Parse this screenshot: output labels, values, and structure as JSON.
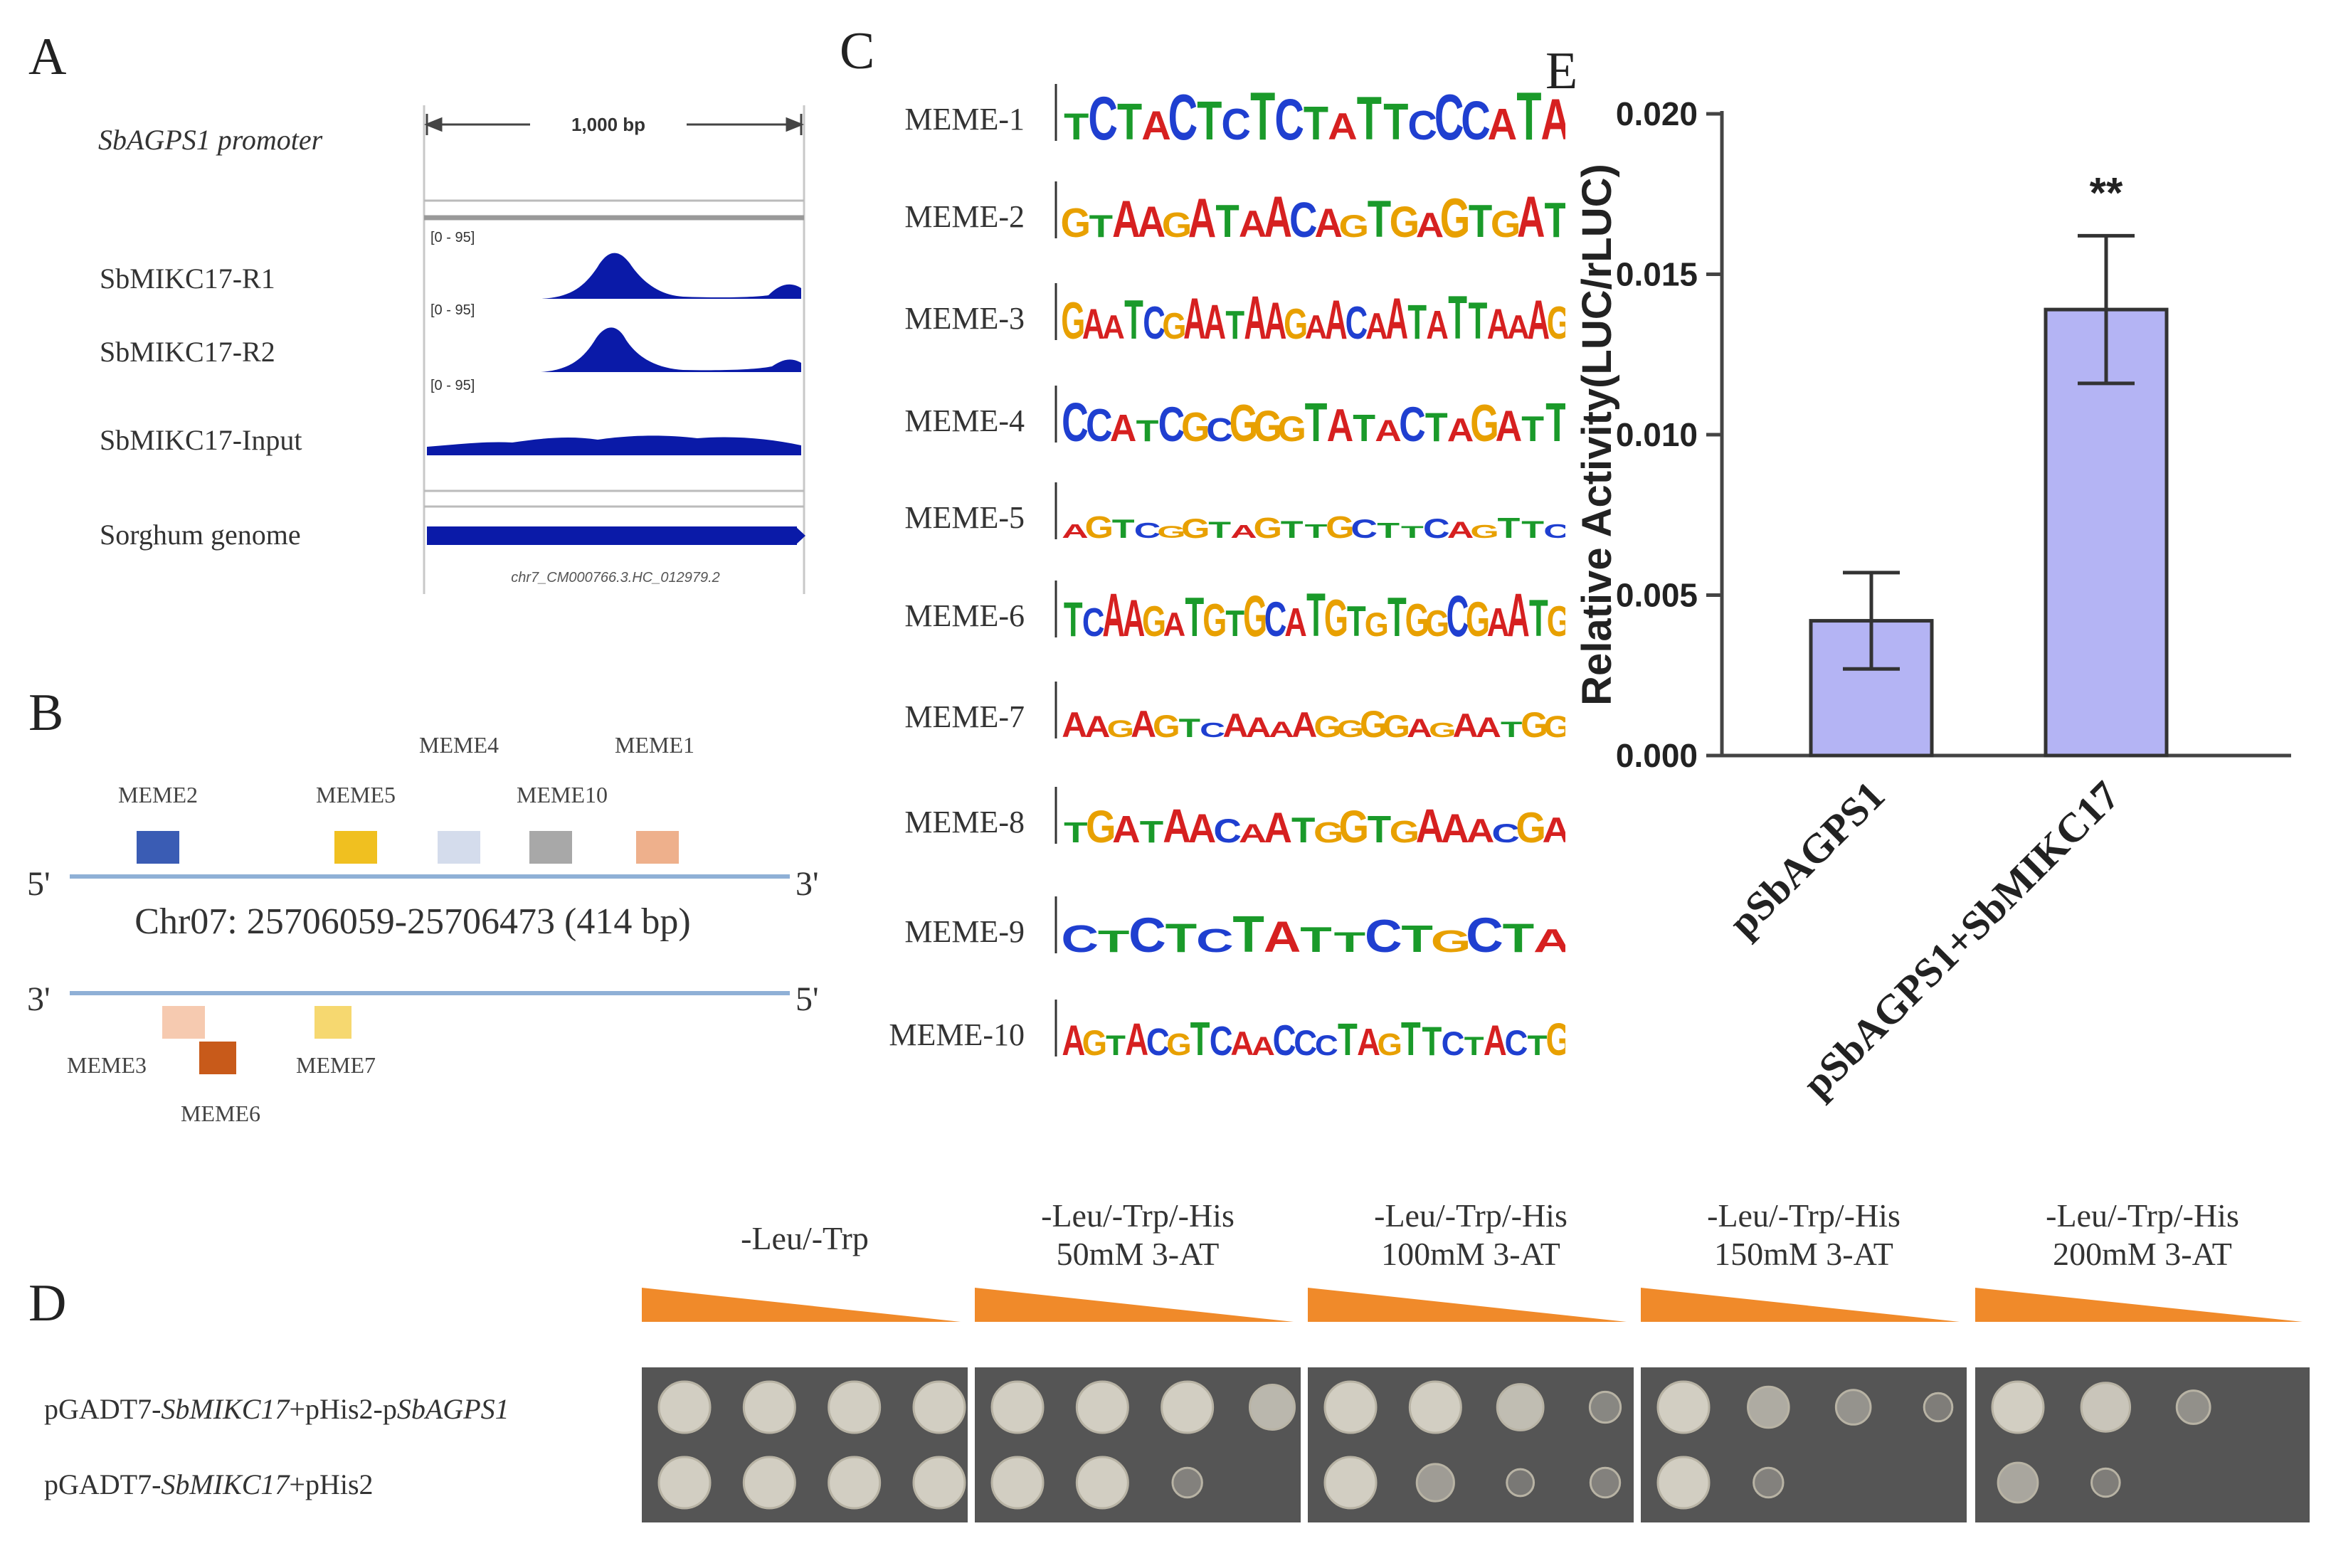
{
  "panels": {
    "a": "A",
    "b": "B",
    "c": "C",
    "d": "D",
    "e": "E"
  },
  "panel_a": {
    "scale_label": "1,000 bp",
    "rows": [
      {
        "label": "SbAGPS1 promoter",
        "italic": true
      },
      {
        "label": "SbMIKC17-R1",
        "range": "[0 - 95]"
      },
      {
        "label": "SbMIKC17-R2",
        "range": "[0 - 95]"
      },
      {
        "label": "SbMIKC17-Input",
        "range": "[0 - 95]"
      },
      {
        "label": "Sorghum genome"
      }
    ],
    "gene_label": "chr7_CM000766.3.HC_012979.2",
    "colors": {
      "track": "#0a1aa8",
      "frame": "#9a9a9a"
    }
  },
  "panel_b": {
    "top_strand": {
      "left": "5'",
      "right": "3'"
    },
    "bottom_strand": {
      "left": "3'",
      "right": "5'"
    },
    "region": "Chr07: 25706059-25706473 (414 bp)",
    "motifs_top": [
      {
        "name": "MEME2",
        "color": "#3a5cb4"
      },
      {
        "name": "MEME5",
        "color": "#f0c020"
      },
      {
        "name": "MEME4",
        "color": "#d4dcec"
      },
      {
        "name": "MEME10",
        "color": "#a8a8a8"
      },
      {
        "name": "MEME1",
        "color": "#eeb08c"
      }
    ],
    "motifs_bottom": [
      {
        "name": "MEME3",
        "color": "#f6cab0"
      },
      {
        "name": "MEME6",
        "color": "#c85a1a"
      },
      {
        "name": "MEME7",
        "color": "#f6d870"
      }
    ],
    "line_color": "#8fb0d6"
  },
  "panel_c": {
    "base_colors": {
      "A": "#d62020",
      "C": "#1f3fd0",
      "G": "#e8a000",
      "T": "#1a9a2a"
    },
    "motifs": [
      {
        "label": "MEME-1",
        "seq": "TCTACTCTCTATTCCCATA"
      },
      {
        "label": "MEME-2",
        "seq": "GTAAGATAACAGTGAGTGAT"
      },
      {
        "label": "MEME-3",
        "seq": "GAATCGAATAAGAACAATATTAAAG"
      },
      {
        "label": "MEME-4",
        "seq": "CCATCGCGGGTATACTAGATT"
      },
      {
        "label": "MEME-5",
        "seq": "AGTCGGTAGTTGCTTCAGTTC"
      },
      {
        "label": "MEME-6",
        "seq": "TCAAGATGTGCATGTGTGGCGAATG"
      },
      {
        "label": "MEME-7",
        "seq": "AAGAGTCAAAAGGGGAGAATGG"
      },
      {
        "label": "MEME-8",
        "seq": "TGATAACAATGGTGAAACGA"
      },
      {
        "label": "MEME-9",
        "seq": "CTCTCTATTCTGCTA"
      },
      {
        "label": "MEME-10",
        "seq": "AGTACGTCAACCCTAGTTCTACTG"
      }
    ]
  },
  "panel_d": {
    "conditions": [
      {
        "line1": "-Leu/-Trp",
        "line2": ""
      },
      {
        "line1": "-Leu/-Trp/-His",
        "line2": "50mM 3-AT"
      },
      {
        "line1": "-Leu/-Trp/-His",
        "line2": "100mM 3-AT"
      },
      {
        "line1": "-Leu/-Trp/-His",
        "line2": "150mM 3-AT"
      },
      {
        "line1": "-Leu/-Trp/-His",
        "line2": "200mM 3-AT"
      }
    ],
    "rows": [
      {
        "prefix": "pGADT7-",
        "gene": "SbMIKC17",
        "mid": "+pHis2-p",
        "gene2": "SbAGPS1"
      },
      {
        "prefix": "pGADT7-",
        "gene": "SbMIKC17",
        "mid": "+pHis2",
        "gene2": ""
      }
    ],
    "colony_growth": [
      [
        [
          1,
          1,
          1,
          1
        ],
        [
          1,
          1,
          1,
          1
        ]
      ],
      [
        [
          1,
          1,
          1,
          0.75
        ],
        [
          1,
          1,
          0.15,
          0
        ]
      ],
      [
        [
          1,
          1,
          0.8,
          0.2
        ],
        [
          1,
          0.45,
          0.05,
          0.15
        ]
      ],
      [
        [
          1,
          0.6,
          0.35,
          0.1
        ],
        [
          1,
          0.15,
          0,
          0
        ]
      ],
      [
        [
          1,
          0.9,
          0.3,
          0
        ],
        [
          0.55,
          0.1,
          0,
          0
        ]
      ]
    ],
    "wedge_color": "#f08a2a",
    "plate_color": "#555555"
  },
  "chart_data": {
    "type": "bar",
    "categories": [
      "pSbAGPS1",
      "pSbAGPS1+SbMIKC17"
    ],
    "values": [
      0.0042,
      0.0139
    ],
    "errors": [
      0.0015,
      0.0023
    ],
    "annotations": [
      "",
      "**"
    ],
    "ylabel": "Relative Activity(LUC/rLUC)",
    "ylim": [
      0,
      0.02
    ],
    "yticks": [
      "0.000",
      "0.005",
      "0.010",
      "0.015",
      "0.020"
    ],
    "bar_color": "#b4b4f4",
    "grid": false
  }
}
